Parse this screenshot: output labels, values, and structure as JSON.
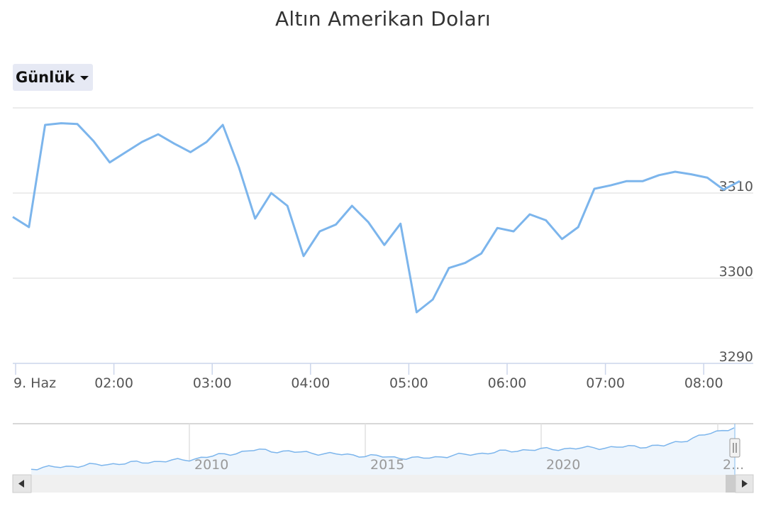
{
  "chart_data": {
    "type": "line",
    "title": "Altın Amerikan Doları",
    "range_selector": "Günlük",
    "ylim": [
      3290,
      3320
    ],
    "yticks": [
      3290,
      3300,
      3310
    ],
    "x_ticks": [
      "9. Haz",
      "02:00",
      "03:00",
      "04:00",
      "05:00",
      "06:00",
      "07:00",
      "08:00"
    ],
    "color": "#7cb5ec",
    "series": [
      {
        "values": [
          3307.2,
          3306.0,
          3318.0,
          3318.2,
          3318.1,
          3316.1,
          3313.6,
          3314.8,
          3316.0,
          3316.9,
          3315.8,
          3314.8,
          3316.0,
          3318.0,
          3313.0,
          3307.0,
          3310.0,
          3308.5,
          3302.6,
          3305.5,
          3306.3,
          3308.5,
          3306.6,
          3303.9,
          3306.4,
          3296.0,
          3297.5,
          3301.2,
          3301.8,
          3302.9,
          3305.9,
          3305.5,
          3307.5,
          3306.8,
          3304.6,
          3306.0,
          3310.5,
          3310.9,
          3311.4,
          3311.4,
          3312.1,
          3312.5,
          3312.2,
          3311.8,
          3310.4,
          3311.4
        ]
      }
    ]
  },
  "navigator": {
    "labels": [
      "2010",
      "2015",
      "2020",
      "2..."
    ]
  }
}
